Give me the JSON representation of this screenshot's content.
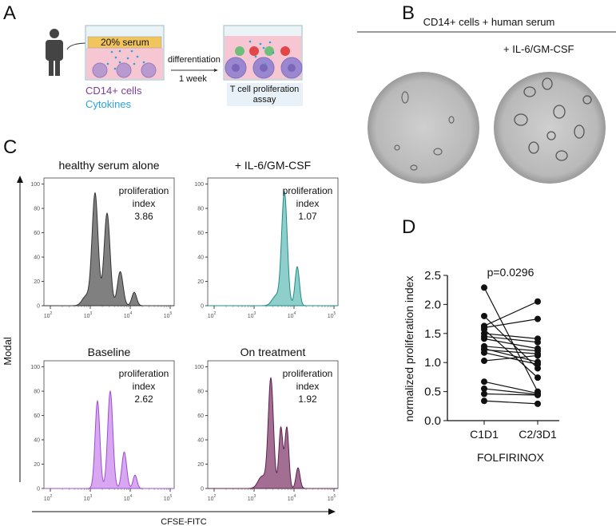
{
  "panels": {
    "a": "A",
    "b": "B",
    "c": "C",
    "d": "D"
  },
  "panel_a": {
    "serum_label": "20% serum",
    "arrow_top": "differentiation",
    "arrow_bottom": "1 week",
    "cells_label": "CD14+ cells",
    "cytokines_label": "Cytokines",
    "assay_line1": "T cell proliferation",
    "assay_line2": "assay",
    "colors": {
      "cells": "#7b3f98",
      "cytokines": "#29a3d9",
      "serum": "#f2c45e",
      "medium": "#f7c6d3"
    }
  },
  "panel_b": {
    "title": "CD14+ cells + human serum",
    "right_label": "+ IL-6/GM-CSF"
  },
  "panel_c": {
    "y_label": "Modal",
    "x_label": "CFSE-FITC",
    "pi_line1": "proliferation",
    "pi_line2": "index",
    "y_ticks": [
      0,
      20,
      40,
      60,
      80,
      100
    ],
    "x_ticks": [
      2,
      3,
      4,
      5
    ],
    "plots": [
      {
        "title": "healthy serum alone",
        "index": "3.86",
        "color": "#808080",
        "stroke": "#333333",
        "peaks": [
          [
            2.9,
            8,
            0.1
          ],
          [
            3.12,
            92,
            0.075
          ],
          [
            3.42,
            76,
            0.075
          ],
          [
            3.75,
            28,
            0.07
          ],
          [
            4.1,
            11,
            0.06
          ]
        ]
      },
      {
        "title": "+ IL-6/GM-CSF",
        "index": "1.07",
        "color": "#8fcfcb",
        "stroke": "#1d8c86",
        "peaks": [
          [
            3.55,
            8,
            0.1
          ],
          [
            3.76,
            93,
            0.07
          ],
          [
            4.08,
            32,
            0.055
          ]
        ]
      },
      {
        "title": "Baseline",
        "index": "2.62",
        "color": "#d9a6f2",
        "stroke": "#9b4fd0",
        "peaks": [
          [
            3.18,
            72,
            0.06
          ],
          [
            3.5,
            80,
            0.065
          ],
          [
            3.85,
            30,
            0.06
          ],
          [
            4.12,
            11,
            0.05
          ]
        ]
      },
      {
        "title": "On treatment",
        "index": "1.92",
        "color": "#a26f93",
        "stroke": "#5e1f4f",
        "peaks": [
          [
            3.2,
            10,
            0.1
          ],
          [
            3.42,
            90,
            0.065
          ],
          [
            3.67,
            50,
            0.05
          ],
          [
            3.82,
            50,
            0.05
          ],
          [
            4.1,
            17,
            0.05
          ]
        ]
      }
    ]
  },
  "chart_data": {
    "type": "scatter",
    "title": "p=0.0296",
    "xlabel": "FOLFIRINOX",
    "ylabel": "normalized proliferation index",
    "categories": [
      "C1D1",
      "C2/3D1"
    ],
    "ylim": [
      0,
      2.5
    ],
    "y_ticks": [
      "0.0",
      "0.5",
      "1.0",
      "1.5",
      "2.0",
      "2.5"
    ],
    "pairs": [
      [
        2.29,
        0.5
      ],
      [
        1.8,
        0.9
      ],
      [
        1.63,
        2.05
      ],
      [
        1.6,
        1.75
      ],
      [
        1.57,
        0.74
      ],
      [
        1.5,
        1.41
      ],
      [
        1.45,
        1.35
      ],
      [
        1.41,
        1.24
      ],
      [
        1.28,
        1.2
      ],
      [
        1.24,
        1.01
      ],
      [
        1.22,
        1.15
      ],
      [
        1.17,
        0.97
      ],
      [
        1.03,
        1.12
      ],
      [
        0.67,
        0.47
      ],
      [
        0.55,
        0.45
      ],
      [
        0.46,
        0.44
      ],
      [
        0.34,
        0.29
      ]
    ]
  }
}
